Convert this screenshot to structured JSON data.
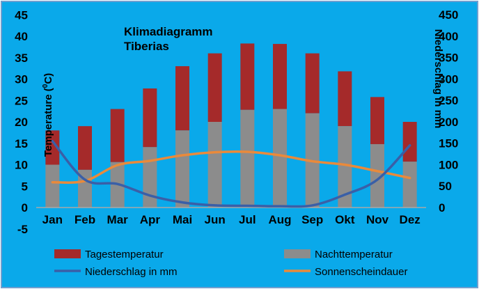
{
  "chart_data": {
    "type": "bar",
    "title": "Klimadiagramm",
    "subtitle": "Tiberias",
    "ylabel_left_main": "Temperature (",
    "ylabel_left_sup": "0",
    "ylabel_left_end": "C)",
    "ylabel_right": "Niederschlag in mm",
    "categories": [
      "Jan",
      "Feb",
      "Mar",
      "Apr",
      "Mai",
      "Jun",
      "Jul",
      "Aug",
      "Sep",
      "Okt",
      "Nov",
      "Dez"
    ],
    "ylim_left": [
      -5,
      45
    ],
    "yticks_left": [
      -5,
      0,
      5,
      10,
      15,
      20,
      25,
      30,
      35,
      40,
      45
    ],
    "ylim_right": [
      0,
      450
    ],
    "yticks_right": [
      0,
      50,
      100,
      150,
      200,
      250,
      300,
      350,
      400,
      450
    ],
    "series": [
      {
        "name": "Tagestemperatur",
        "kind": "bar",
        "color": "#a52a2a",
        "values": [
          18,
          19,
          23,
          27.8,
          33,
          36,
          38.3,
          38.2,
          36,
          31.8,
          25.8,
          20
        ]
      },
      {
        "name": "Nachttemperatur",
        "kind": "bar",
        "color": "#8c8c8c",
        "values": [
          10,
          8.8,
          10.6,
          14.1,
          18,
          20,
          22.8,
          23,
          22,
          19,
          14.8,
          10.7
        ]
      },
      {
        "name": "Niederschlag in mm",
        "kind": "line",
        "axis": "right",
        "color": "#3a5fa7",
        "values": [
          155,
          65,
          55,
          28,
          12,
          5,
          4,
          3,
          5,
          30,
          65,
          145
        ]
      },
      {
        "name": "Sonnenscheindauer",
        "kind": "line",
        "axis": "left",
        "color": "#e98a3b",
        "values": [
          5.9,
          6.2,
          9.9,
          10.9,
          12.2,
          12.9,
          13.0,
          12.2,
          10.8,
          10.0,
          8.5,
          6.9
        ]
      }
    ],
    "grid": false,
    "legend_position": "bottom"
  }
}
